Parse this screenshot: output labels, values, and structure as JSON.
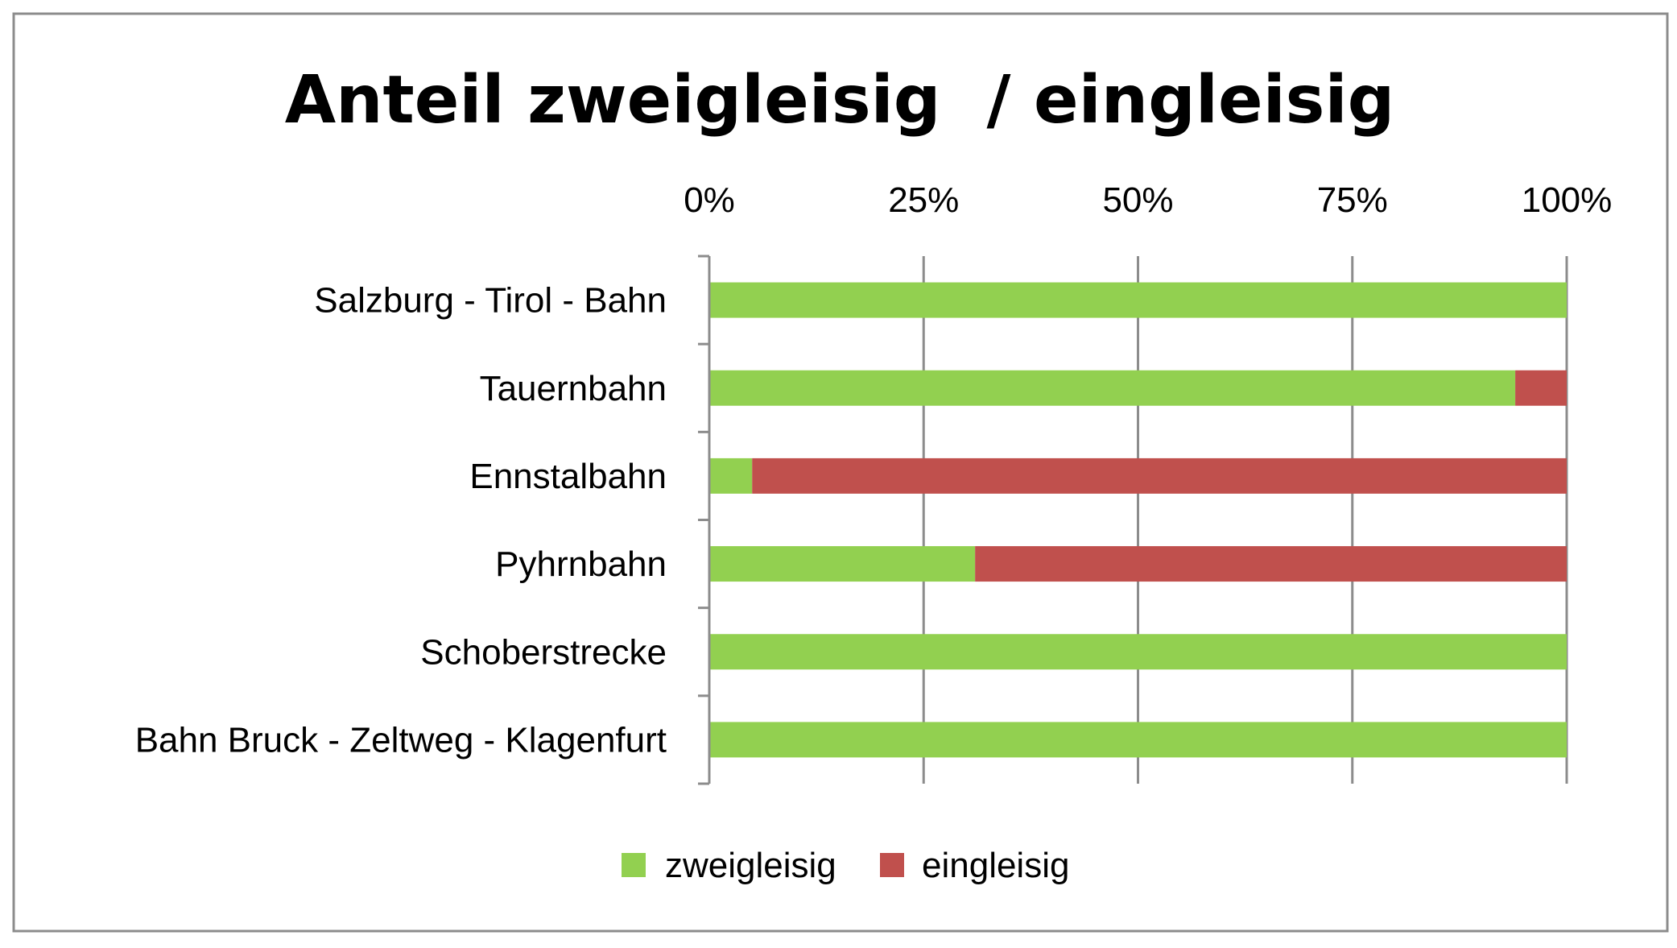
{
  "chart_data": {
    "type": "bar",
    "orientation": "horizontal",
    "stacked": "percent",
    "title": "Anteil zweigleisig  / eingleisig",
    "xlabel": "",
    "ylabel": "",
    "xlim": [
      0,
      100
    ],
    "x_ticks": [
      "0%",
      "25%",
      "50%",
      "75%",
      "100%"
    ],
    "x_axis_position": "top",
    "grid": true,
    "categories": [
      "Salzburg - Tirol - Bahn",
      "Tauernbahn",
      "Ennstalbahn",
      "Pyhrnbahn",
      "Schoberstrecke",
      "Bahn Bruck - Zeltweg - Klagenfurt"
    ],
    "series": [
      {
        "name": "zweigleisig",
        "color": "#92d050",
        "values": [
          100,
          94,
          5,
          31,
          100,
          100
        ]
      },
      {
        "name": "eingleisig",
        "color": "#c0504d",
        "values": [
          0,
          6,
          95,
          69,
          0,
          0
        ]
      }
    ],
    "legend_position": "bottom"
  }
}
